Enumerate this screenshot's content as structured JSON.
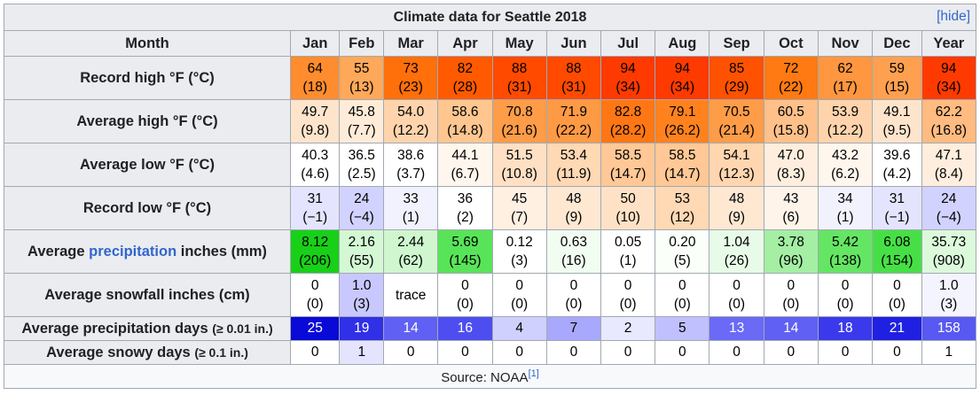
{
  "table": {
    "caption": "Climate data for Seattle 2018",
    "hide_label": "[hide]",
    "header": [
      "Month",
      "Jan",
      "Feb",
      "Mar",
      "Apr",
      "May",
      "Jun",
      "Jul",
      "Aug",
      "Sep",
      "Oct",
      "Nov",
      "Dec",
      "Year"
    ],
    "rows": [
      {
        "label": "Record high °F (°C)",
        "lines": 2,
        "cells": [
          {
            "v": "64",
            "c": "(18)",
            "bg": "#ff8c2e",
            "fg": "#000000"
          },
          {
            "v": "55",
            "c": "(13)",
            "bg": "#ffa85a",
            "fg": "#000000"
          },
          {
            "v": "73",
            "c": "(23)",
            "bg": "#ff6f0a",
            "fg": "#000000"
          },
          {
            "v": "82",
            "c": "(28)",
            "bg": "#ff5a00",
            "fg": "#000000"
          },
          {
            "v": "88",
            "c": "(31)",
            "bg": "#ff4a00",
            "fg": "#000000"
          },
          {
            "v": "88",
            "c": "(31)",
            "bg": "#ff4a00",
            "fg": "#000000"
          },
          {
            "v": "94",
            "c": "(34)",
            "bg": "#ff3a00",
            "fg": "#000000"
          },
          {
            "v": "94",
            "c": "(34)",
            "bg": "#ff3a00",
            "fg": "#000000"
          },
          {
            "v": "85",
            "c": "(29)",
            "bg": "#ff5200",
            "fg": "#000000"
          },
          {
            "v": "72",
            "c": "(22)",
            "bg": "#ff7a12",
            "fg": "#000000"
          },
          {
            "v": "62",
            "c": "(17)",
            "bg": "#ff9640",
            "fg": "#000000"
          },
          {
            "v": "59",
            "c": "(15)",
            "bg": "#ffa050",
            "fg": "#000000"
          },
          {
            "v": "94",
            "c": "(34)",
            "bg": "#ff3a00",
            "fg": "#000000"
          }
        ]
      },
      {
        "label": "Average high °F (°C)",
        "lines": 2,
        "cells": [
          {
            "v": "49.7",
            "c": "(9.8)",
            "bg": "#ffe4cc",
            "fg": "#000000"
          },
          {
            "v": "45.8",
            "c": "(7.7)",
            "bg": "#ffecd8",
            "fg": "#000000"
          },
          {
            "v": "54.0",
            "c": "(12.2)",
            "bg": "#ffd4ac",
            "fg": "#000000"
          },
          {
            "v": "58.6",
            "c": "(14.8)",
            "bg": "#ffc690",
            "fg": "#000000"
          },
          {
            "v": "70.8",
            "c": "(21.6)",
            "bg": "#ff9c48",
            "fg": "#000000"
          },
          {
            "v": "71.9",
            "c": "(22.2)",
            "bg": "#ff9a44",
            "fg": "#000000"
          },
          {
            "v": "82.8",
            "c": "(28.2)",
            "bg": "#ff7714",
            "fg": "#000000"
          },
          {
            "v": "79.1",
            "c": "(26.2)",
            "bg": "#ff821f",
            "fg": "#000000"
          },
          {
            "v": "70.5",
            "c": "(21.4)",
            "bg": "#ff9c48",
            "fg": "#000000"
          },
          {
            "v": "60.5",
            "c": "(15.8)",
            "bg": "#ffc08a",
            "fg": "#000000"
          },
          {
            "v": "53.9",
            "c": "(12.2)",
            "bg": "#ffd4ac",
            "fg": "#000000"
          },
          {
            "v": "49.1",
            "c": "(9.5)",
            "bg": "#ffe4cc",
            "fg": "#000000"
          },
          {
            "v": "62.2",
            "c": "(16.8)",
            "bg": "#ffbb80",
            "fg": "#000000"
          }
        ]
      },
      {
        "label": "Average low °F (°C)",
        "lines": 2,
        "cells": [
          {
            "v": "40.3",
            "c": "(4.6)",
            "bg": "#ffffff",
            "fg": "#000000"
          },
          {
            "v": "36.5",
            "c": "(2.5)",
            "bg": "#ffffff",
            "fg": "#000000"
          },
          {
            "v": "38.6",
            "c": "(3.7)",
            "bg": "#ffffff",
            "fg": "#000000"
          },
          {
            "v": "44.1",
            "c": "(6.7)",
            "bg": "#fff6ee",
            "fg": "#000000"
          },
          {
            "v": "51.5",
            "c": "(10.8)",
            "bg": "#ffe0c4",
            "fg": "#000000"
          },
          {
            "v": "53.4",
            "c": "(11.9)",
            "bg": "#ffd8b4",
            "fg": "#000000"
          },
          {
            "v": "58.5",
            "c": "(14.7)",
            "bg": "#ffc896",
            "fg": "#000000"
          },
          {
            "v": "58.5",
            "c": "(14.7)",
            "bg": "#ffc896",
            "fg": "#000000"
          },
          {
            "v": "54.1",
            "c": "(12.3)",
            "bg": "#ffd6b0",
            "fg": "#000000"
          },
          {
            "v": "47.0",
            "c": "(8.3)",
            "bg": "#ffeede",
            "fg": "#000000"
          },
          {
            "v": "43.2",
            "c": "(6.2)",
            "bg": "#fff6ee",
            "fg": "#000000"
          },
          {
            "v": "39.6",
            "c": "(4.2)",
            "bg": "#ffffff",
            "fg": "#000000"
          },
          {
            "v": "47.1",
            "c": "(8.4)",
            "bg": "#ffeede",
            "fg": "#000000"
          }
        ]
      },
      {
        "label": "Record low °F (°C)",
        "lines": 2,
        "cells": [
          {
            "v": "31",
            "c": "(−1)",
            "bg": "#e4e4ff",
            "fg": "#000000"
          },
          {
            "v": "24",
            "c": "(−4)",
            "bg": "#d2d2ff",
            "fg": "#000000"
          },
          {
            "v": "33",
            "c": "(1)",
            "bg": "#f2f2ff",
            "fg": "#000000"
          },
          {
            "v": "36",
            "c": "(2)",
            "bg": "#ffffff",
            "fg": "#000000"
          },
          {
            "v": "45",
            "c": "(7)",
            "bg": "#fff0e2",
            "fg": "#000000"
          },
          {
            "v": "48",
            "c": "(9)",
            "bg": "#ffe8d2",
            "fg": "#000000"
          },
          {
            "v": "50",
            "c": "(10)",
            "bg": "#ffe2c6",
            "fg": "#000000"
          },
          {
            "v": "53",
            "c": "(12)",
            "bg": "#ffd8b4",
            "fg": "#000000"
          },
          {
            "v": "48",
            "c": "(9)",
            "bg": "#ffe8d2",
            "fg": "#000000"
          },
          {
            "v": "43",
            "c": "(6)",
            "bg": "#fff4ea",
            "fg": "#000000"
          },
          {
            "v": "34",
            "c": "(1)",
            "bg": "#f2f2ff",
            "fg": "#000000"
          },
          {
            "v": "31",
            "c": "(−1)",
            "bg": "#e4e4ff",
            "fg": "#000000"
          },
          {
            "v": "24",
            "c": "(−4)",
            "bg": "#d2d2ff",
            "fg": "#000000"
          }
        ]
      },
      {
        "label_pre": "Average ",
        "label_link": "precipitation",
        "label_post": " inches (mm)",
        "lines": 2,
        "cells": [
          {
            "v": "8.12",
            "c": "(206)",
            "bg": "#18d018",
            "fg": "#000000"
          },
          {
            "v": "2.16",
            "c": "(55)",
            "bg": "#d4f8d4",
            "fg": "#000000"
          },
          {
            "v": "2.44",
            "c": "(62)",
            "bg": "#cff6cf",
            "fg": "#000000"
          },
          {
            "v": "5.69",
            "c": "(145)",
            "bg": "#58e458",
            "fg": "#000000"
          },
          {
            "v": "0.12",
            "c": "(3)",
            "bg": "#ffffff",
            "fg": "#000000"
          },
          {
            "v": "0.63",
            "c": "(16)",
            "bg": "#f2fdf2",
            "fg": "#000000"
          },
          {
            "v": "0.05",
            "c": "(1)",
            "bg": "#ffffff",
            "fg": "#000000"
          },
          {
            "v": "0.20",
            "c": "(5)",
            "bg": "#fafffa",
            "fg": "#000000"
          },
          {
            "v": "1.04",
            "c": "(26)",
            "bg": "#e8fbe8",
            "fg": "#000000"
          },
          {
            "v": "3.78",
            "c": "(96)",
            "bg": "#a4efa4",
            "fg": "#000000"
          },
          {
            "v": "5.42",
            "c": "(138)",
            "bg": "#64e664",
            "fg": "#000000"
          },
          {
            "v": "6.08",
            "c": "(154)",
            "bg": "#46e046",
            "fg": "#000000"
          },
          {
            "v": "35.73",
            "c": "(908)",
            "bg": "#dcf9dc",
            "fg": "#000000"
          }
        ]
      },
      {
        "label": "Average snowfall inches (cm)",
        "lines": 2,
        "cells": [
          {
            "v": "0",
            "c": "(0)",
            "bg": "#ffffff",
            "fg": "#000000"
          },
          {
            "v": "1.0",
            "c": "(3)",
            "bg": "#c8c8ff",
            "fg": "#000000"
          },
          {
            "v": "trace",
            "c": "",
            "bg": "#ffffff",
            "fg": "#000000"
          },
          {
            "v": "0",
            "c": "(0)",
            "bg": "#ffffff",
            "fg": "#000000"
          },
          {
            "v": "0",
            "c": "(0)",
            "bg": "#ffffff",
            "fg": "#000000"
          },
          {
            "v": "0",
            "c": "(0)",
            "bg": "#ffffff",
            "fg": "#000000"
          },
          {
            "v": "0",
            "c": "(0)",
            "bg": "#ffffff",
            "fg": "#000000"
          },
          {
            "v": "0",
            "c": "(0)",
            "bg": "#ffffff",
            "fg": "#000000"
          },
          {
            "v": "0",
            "c": "(0)",
            "bg": "#ffffff",
            "fg": "#000000"
          },
          {
            "v": "0",
            "c": "(0)",
            "bg": "#ffffff",
            "fg": "#000000"
          },
          {
            "v": "0",
            "c": "(0)",
            "bg": "#ffffff",
            "fg": "#000000"
          },
          {
            "v": "0",
            "c": "(0)",
            "bg": "#ffffff",
            "fg": "#000000"
          },
          {
            "v": "1.0",
            "c": "(3)",
            "bg": "#f4f4ff",
            "fg": "#000000"
          }
        ]
      },
      {
        "label_pre": "Average precipitation days ",
        "label_small": "(≥ 0.01 in.)",
        "lines": 1,
        "cells": [
          {
            "v": "25",
            "c": "",
            "bg": "#0a0ad8",
            "fg": "#ffffff"
          },
          {
            "v": "19",
            "c": "",
            "bg": "#3030e8",
            "fg": "#ffffff"
          },
          {
            "v": "14",
            "c": "",
            "bg": "#6060f4",
            "fg": "#ffffff"
          },
          {
            "v": "16",
            "c": "",
            "bg": "#4e4ef0",
            "fg": "#ffffff"
          },
          {
            "v": "4",
            "c": "",
            "bg": "#d0d0ff",
            "fg": "#000000"
          },
          {
            "v": "7",
            "c": "",
            "bg": "#a8a8fc",
            "fg": "#000000"
          },
          {
            "v": "2",
            "c": "",
            "bg": "#e8e8ff",
            "fg": "#000000"
          },
          {
            "v": "5",
            "c": "",
            "bg": "#c0c0ff",
            "fg": "#000000"
          },
          {
            "v": "13",
            "c": "",
            "bg": "#6a6af6",
            "fg": "#ffffff"
          },
          {
            "v": "14",
            "c": "",
            "bg": "#6060f4",
            "fg": "#ffffff"
          },
          {
            "v": "18",
            "c": "",
            "bg": "#3a3aec",
            "fg": "#ffffff"
          },
          {
            "v": "21",
            "c": "",
            "bg": "#2020e2",
            "fg": "#ffffff"
          },
          {
            "v": "158",
            "c": "",
            "bg": "#5858f2",
            "fg": "#ffffff"
          }
        ]
      },
      {
        "label_pre": "Average snowy days ",
        "label_small": "(≥ 0.1 in.)",
        "lines": 1,
        "cells": [
          {
            "v": "0",
            "c": "",
            "bg": "#ffffff",
            "fg": "#000000"
          },
          {
            "v": "1",
            "c": "",
            "bg": "#e4e4ff",
            "fg": "#000000"
          },
          {
            "v": "0",
            "c": "",
            "bg": "#ffffff",
            "fg": "#000000"
          },
          {
            "v": "0",
            "c": "",
            "bg": "#ffffff",
            "fg": "#000000"
          },
          {
            "v": "0",
            "c": "",
            "bg": "#ffffff",
            "fg": "#000000"
          },
          {
            "v": "0",
            "c": "",
            "bg": "#ffffff",
            "fg": "#000000"
          },
          {
            "v": "0",
            "c": "",
            "bg": "#ffffff",
            "fg": "#000000"
          },
          {
            "v": "0",
            "c": "",
            "bg": "#ffffff",
            "fg": "#000000"
          },
          {
            "v": "0",
            "c": "",
            "bg": "#ffffff",
            "fg": "#000000"
          },
          {
            "v": "0",
            "c": "",
            "bg": "#ffffff",
            "fg": "#000000"
          },
          {
            "v": "0",
            "c": "",
            "bg": "#ffffff",
            "fg": "#000000"
          },
          {
            "v": "0",
            "c": "",
            "bg": "#ffffff",
            "fg": "#000000"
          },
          {
            "v": "1",
            "c": "",
            "bg": "#ffffff",
            "fg": "#000000"
          }
        ]
      }
    ],
    "source_text": "Source: NOAA",
    "source_ref": "[1]"
  }
}
